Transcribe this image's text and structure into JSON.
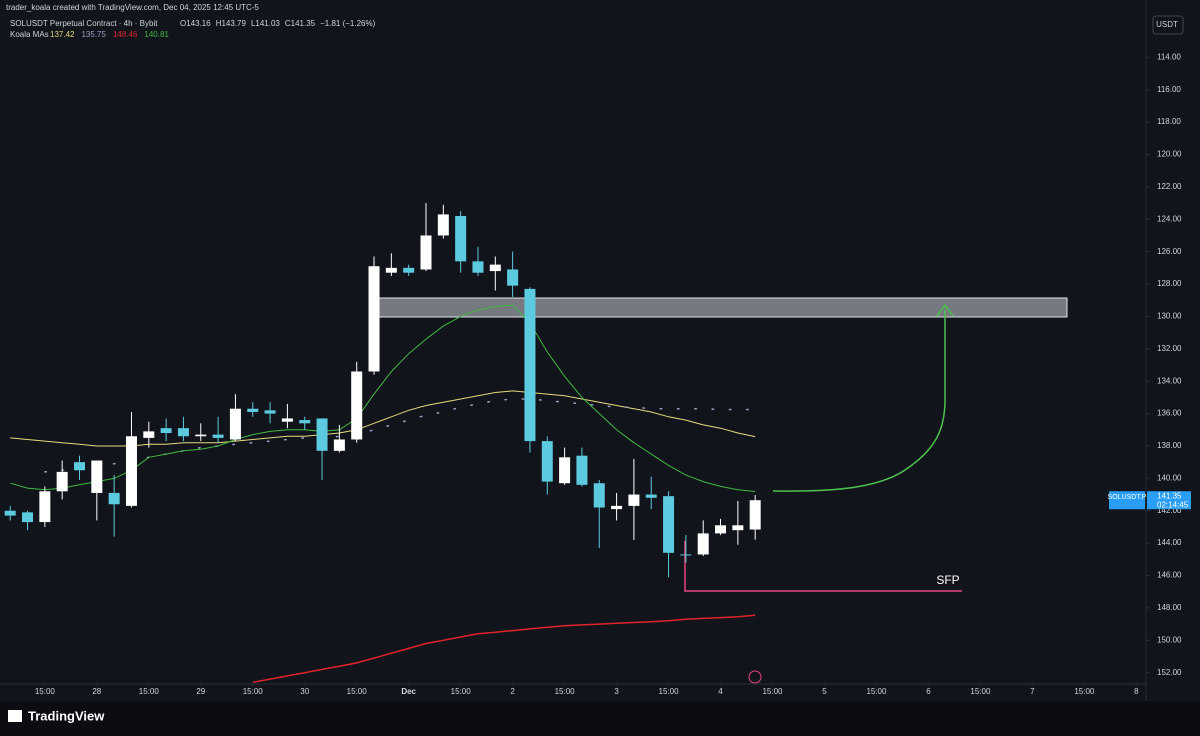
{
  "header": {
    "credit": "trader_koala created with TradingView.com, Dec 04, 2025 12:45 UTC-5",
    "currency": "USDT",
    "logo": "TradingView"
  },
  "chart_data": {
    "type": "candlestick",
    "title": "SOLUSDT Perpetual Contract · 4h · Bybit",
    "ohlc_legend": [
      "O143.16",
      "H143.79",
      "L141.03",
      "C141.35",
      "−1.81 (−1.26%)"
    ],
    "indicator": "Koala MAs",
    "colors": {
      "rising": "#5ccbe0",
      "falling": "#ffffff"
    },
    "xlim": [
      -0.3,
      65.5
    ],
    "xticks": [
      {
        "value": 2,
        "label": "15:00"
      },
      {
        "value": 5,
        "label": "28"
      },
      {
        "value": 8,
        "label": "15:00"
      },
      {
        "value": 11,
        "label": "29"
      },
      {
        "value": 14,
        "label": "15:00"
      },
      {
        "value": 17,
        "label": "30"
      },
      {
        "value": 20,
        "label": "15:00"
      },
      {
        "value": 23,
        "label": "Dec"
      },
      {
        "value": 26,
        "label": "15:00"
      },
      {
        "value": 29,
        "label": "2"
      },
      {
        "value": 32,
        "label": "15:00"
      },
      {
        "value": 35,
        "label": "3"
      },
      {
        "value": 38,
        "label": "15:00"
      },
      {
        "value": 41,
        "label": "4"
      },
      {
        "value": 44,
        "label": "15:00"
      },
      {
        "value": 47,
        "label": "5"
      },
      {
        "value": 50,
        "label": "15:00"
      },
      {
        "value": 53,
        "label": "6"
      },
      {
        "value": 56,
        "label": "15:00"
      },
      {
        "value": 59,
        "label": "7"
      },
      {
        "value": 62,
        "label": "15:00"
      },
      {
        "value": 65,
        "label": "8"
      }
    ],
    "ylim": [
      111.2,
      152.7
    ],
    "y_inverted": true,
    "yticks": [
      {
        "value": 114,
        "label": "114.00"
      },
      {
        "value": 116,
        "label": "116.00"
      },
      {
        "value": 118,
        "label": "118.00"
      },
      {
        "value": 120,
        "label": "120.00"
      },
      {
        "value": 122,
        "label": "122.00"
      },
      {
        "value": 124,
        "label": "124.00"
      },
      {
        "value": 126,
        "label": "126.00"
      },
      {
        "value": 128,
        "label": "128.00"
      },
      {
        "value": 130,
        "label": "130.00"
      },
      {
        "value": 132,
        "label": "132.00"
      },
      {
        "value": 134,
        "label": "134.00"
      },
      {
        "value": 136,
        "label": "136.00"
      },
      {
        "value": 138,
        "label": "138.00"
      },
      {
        "value": 140,
        "label": "140.00"
      },
      {
        "value": 142,
        "label": "142.00"
      },
      {
        "value": 144,
        "label": "144.00"
      },
      {
        "value": 146,
        "label": "146.00"
      },
      {
        "value": 148,
        "label": "148.00"
      },
      {
        "value": 150,
        "label": "150.00"
      },
      {
        "value": 152,
        "label": "152.00"
      }
    ],
    "open": [
      142.0,
      142.1,
      142.7,
      140.8,
      139.0,
      140.9,
      140.9,
      141.7,
      137.5,
      136.9,
      136.9,
      137.4,
      137.3,
      137.6,
      135.7,
      135.8,
      136.5,
      136.4,
      136.3,
      138.3,
      137.6,
      133.4,
      127.3,
      127.0,
      127.1,
      125.0,
      123.8,
      126.6,
      127.2,
      127.1,
      128.3,
      137.7,
      140.3,
      138.6,
      140.3,
      141.9,
      141.7,
      141.0,
      141.1,
      144.7,
      144.7,
      143.4,
      143.2,
      143.16
    ],
    "high": [
      142.6,
      143.2,
      143.0,
      141.3,
      140.1,
      142.6,
      143.6,
      141.8,
      138.1,
      137.7,
      137.7,
      137.7,
      137.8,
      137.7,
      136.2,
      136.6,
      136.9,
      137.0,
      140.1,
      138.4,
      137.8,
      133.6,
      127.5,
      127.5,
      127.2,
      125.2,
      127.3,
      127.5,
      128.4,
      128.8,
      138.4,
      141.0,
      140.4,
      140.5,
      144.3,
      142.6,
      143.8,
      141.9,
      146.1,
      145.2,
      144.8,
      143.5,
      144.1,
      143.79
    ],
    "low": [
      141.7,
      142.0,
      140.5,
      138.9,
      138.6,
      138.9,
      139.8,
      135.9,
      136.5,
      136.3,
      136.2,
      136.6,
      136.2,
      134.8,
      135.3,
      135.3,
      135.4,
      136.2,
      136.3,
      136.7,
      132.8,
      126.3,
      126.1,
      126.8,
      123.0,
      123.1,
      123.5,
      125.7,
      126.3,
      126.0,
      128.2,
      137.4,
      138.1,
      138.1,
      140.1,
      140.9,
      138.8,
      139.9,
      140.8,
      143.5,
      142.6,
      142.5,
      141.4,
      141.03
    ],
    "close": [
      142.3,
      142.7,
      140.8,
      139.6,
      139.5,
      138.9,
      141.6,
      137.4,
      137.1,
      137.2,
      137.4,
      137.3,
      137.5,
      135.7,
      135.9,
      136.0,
      136.3,
      136.6,
      138.3,
      137.6,
      133.4,
      126.9,
      127.0,
      127.3,
      125.0,
      123.7,
      126.6,
      127.3,
      126.8,
      128.1,
      137.7,
      140.2,
      138.7,
      140.4,
      141.8,
      141.7,
      141.0,
      141.2,
      144.6,
      144.7,
      143.4,
      142.9,
      142.9,
      141.35
    ],
    "series": [
      {
        "color": "#e8d97a",
        "line_style": "solid",
        "width": 1,
        "legend_value": "137.42",
        "values": [
          137.5,
          137.6,
          137.7,
          137.8,
          137.9,
          138.0,
          138.0,
          138.0,
          137.9,
          137.9,
          137.8,
          137.8,
          137.8,
          137.7,
          137.6,
          137.5,
          137.4,
          137.4,
          137.3,
          137.2,
          137.0,
          136.6,
          136.2,
          135.8,
          135.5,
          135.3,
          135.1,
          134.9,
          134.7,
          134.6,
          134.7,
          134.8,
          134.9,
          135.1,
          135.3,
          135.5,
          135.7,
          135.9,
          136.2,
          136.4,
          136.7,
          136.9,
          137.2,
          137.42
        ]
      },
      {
        "color": "#9aa0c4",
        "line_style": "dotted",
        "width": 1.5,
        "legend_value": "135.75",
        "values": [
          null,
          null,
          139.6,
          139.5,
          139.4,
          139.3,
          139.1,
          138.9,
          138.7,
          138.5,
          138.3,
          138.1,
          138.0,
          137.9,
          137.8,
          137.7,
          137.6,
          137.5,
          137.5,
          137.4,
          137.3,
          137.0,
          136.7,
          136.4,
          136.1,
          135.9,
          135.6,
          135.4,
          135.2,
          135.1,
          135.1,
          135.2,
          135.3,
          135.4,
          135.5,
          135.6,
          135.6,
          135.7,
          135.7,
          135.7,
          135.7,
          135.75,
          135.75,
          135.75
        ]
      },
      {
        "color": "#e0242a",
        "line_style": "solid",
        "width": 1.5,
        "legend_value": "148.46",
        "values": [
          null,
          null,
          null,
          null,
          null,
          null,
          null,
          null,
          null,
          null,
          null,
          null,
          null,
          null,
          152.6,
          152.4,
          152.2,
          152.0,
          151.8,
          151.6,
          151.4,
          151.1,
          150.8,
          150.5,
          150.2,
          150.0,
          149.8,
          149.6,
          149.5,
          149.4,
          149.3,
          149.2,
          149.1,
          149.05,
          149.0,
          148.95,
          148.9,
          148.85,
          148.8,
          148.7,
          148.65,
          148.6,
          148.55,
          148.46
        ]
      },
      {
        "color": "#3fb93f",
        "line_style": "solid",
        "width": 1,
        "legend_value": "140.81",
        "values": [
          140.3,
          140.6,
          140.7,
          140.6,
          140.4,
          140.2,
          140.0,
          139.5,
          138.7,
          138.5,
          138.3,
          138.2,
          138.0,
          137.6,
          137.3,
          137.1,
          137.0,
          137.0,
          137.1,
          137.0,
          136.3,
          134.8,
          133.4,
          132.3,
          131.4,
          130.6,
          130.0,
          129.6,
          129.4,
          129.3,
          130.4,
          132.2,
          133.7,
          135.0,
          136.0,
          137.0,
          137.8,
          138.5,
          139.2,
          139.8,
          140.2,
          140.5,
          140.7,
          140.81
        ]
      }
    ],
    "last_price": {
      "symbol": "SOLUSDT.P",
      "value": 141.35,
      "countdown": "02:14:45",
      "color": "#2a9df4"
    },
    "annotation": "SFP"
  }
}
